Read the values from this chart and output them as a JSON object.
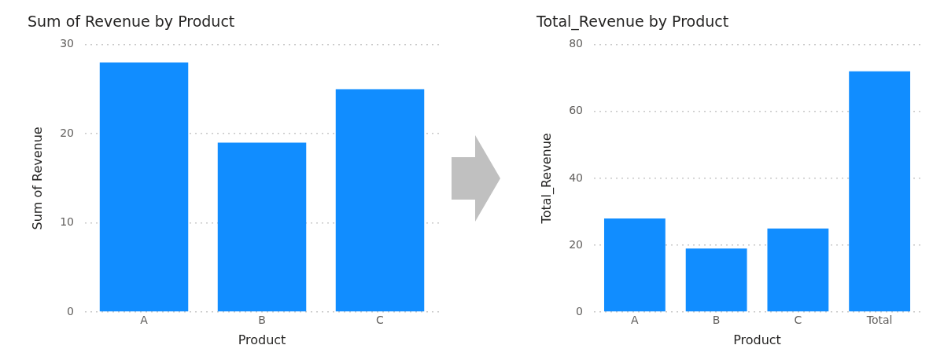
{
  "chart_data": [
    {
      "type": "bar",
      "title": "Sum of Revenue by Product",
      "xlabel": "Product",
      "ylabel": "Sum of Revenue",
      "categories": [
        "A",
        "B",
        "C"
      ],
      "values": [
        28,
        19,
        25
      ],
      "color": "#118dff",
      "ylim": [
        0,
        30
      ],
      "yticks": [
        0,
        10,
        20,
        30
      ],
      "grid": "y"
    },
    {
      "type": "bar",
      "title": "Total_Revenue by Product",
      "xlabel": "Product",
      "ylabel": "Total_Revenue",
      "categories": [
        "A",
        "B",
        "C",
        "Total"
      ],
      "values": [
        28,
        19,
        25,
        72
      ],
      "color": "#118dff",
      "ylim": [
        0,
        80
      ],
      "yticks": [
        0,
        20,
        40,
        60,
        80
      ],
      "grid": "y"
    }
  ]
}
